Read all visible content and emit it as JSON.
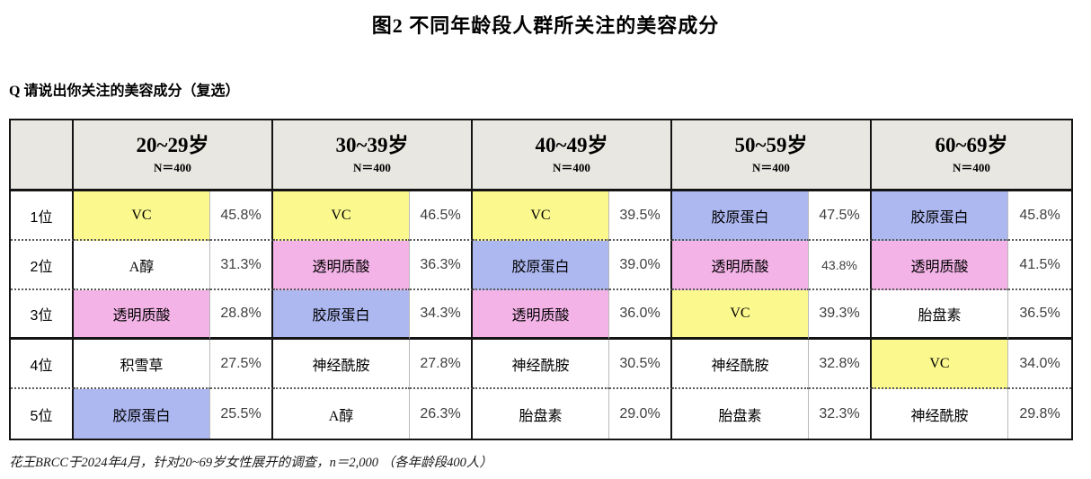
{
  "title": "图2  不同年龄段人群所关注的美容成分",
  "question": "Q 请说出你关注的美容成分（复选）",
  "footnote": "花王BRCC于2024年4月，针对20~69岁女性展开的调查，n＝2,000 （各年龄段400人）",
  "colors": {
    "yellow": "#fbf98e",
    "pink": "#f3b3e7",
    "blue": "#adb7f0",
    "white": "#ffffff"
  },
  "table": {
    "columns": [
      {
        "label": "20~29岁",
        "n": "N＝400"
      },
      {
        "label": "30~39岁",
        "n": "N＝400"
      },
      {
        "label": "40~49岁",
        "n": "N＝400"
      },
      {
        "label": "50~59岁",
        "n": "N＝400"
      },
      {
        "label": "60~69岁",
        "n": "N＝400"
      }
    ],
    "rows": [
      {
        "rank": "1位",
        "cells": [
          {
            "name": "VC",
            "value": "45.8%",
            "bg": "yellow"
          },
          {
            "name": "VC",
            "value": "46.5%",
            "bg": "yellow"
          },
          {
            "name": "VC",
            "value": "39.5%",
            "bg": "yellow"
          },
          {
            "name": "胶原蛋白",
            "value": "47.5%",
            "bg": "blue"
          },
          {
            "name": "胶原蛋白",
            "value": "45.8%",
            "bg": "blue"
          }
        ]
      },
      {
        "rank": "2位",
        "cells": [
          {
            "name": "A醇",
            "value": "31.3%",
            "bg": "white"
          },
          {
            "name": "透明质酸",
            "value": "36.3%",
            "bg": "pink"
          },
          {
            "name": "胶原蛋白",
            "value": "39.0%",
            "bg": "blue"
          },
          {
            "name": "透明质酸",
            "value": "43.8%",
            "bg": "pink"
          },
          {
            "name": "透明质酸",
            "value": "41.5%",
            "bg": "pink"
          }
        ]
      },
      {
        "rank": "3位",
        "cells": [
          {
            "name": "透明质酸",
            "value": "28.8%",
            "bg": "pink"
          },
          {
            "name": "胶原蛋白",
            "value": "34.3%",
            "bg": "blue"
          },
          {
            "name": "透明质酸",
            "value": "36.0%",
            "bg": "pink"
          },
          {
            "name": "VC",
            "value": "39.3%",
            "bg": "yellow"
          },
          {
            "name": "胎盘素",
            "value": "36.5%",
            "bg": "white"
          }
        ]
      },
      {
        "rank": "4位",
        "cells": [
          {
            "name": "积雪草",
            "value": "27.5%",
            "bg": "white"
          },
          {
            "name": "神经酰胺",
            "value": "27.8%",
            "bg": "white"
          },
          {
            "name": "神经酰胺",
            "value": "30.5%",
            "bg": "white"
          },
          {
            "name": "神经酰胺",
            "value": "32.8%",
            "bg": "white"
          },
          {
            "name": "VC",
            "value": "34.0%",
            "bg": "yellow"
          }
        ]
      },
      {
        "rank": "5位",
        "cells": [
          {
            "name": "胶原蛋白",
            "value": "25.5%",
            "bg": "blue"
          },
          {
            "name": "A醇",
            "value": "26.3%",
            "bg": "white"
          },
          {
            "name": "胎盘素",
            "value": "29.0%",
            "bg": "white"
          },
          {
            "name": "胎盘素",
            "value": "32.3%",
            "bg": "white"
          },
          {
            "name": "神经酰胺",
            "value": "29.8%",
            "bg": "white"
          }
        ]
      }
    ]
  },
  "chart_data": {
    "type": "table",
    "title": "图2 不同年龄段人群所关注的美容成分",
    "question": "Q 请说出你关注的美容成分（复选）",
    "columns": [
      "20~29岁",
      "30~39岁",
      "40~49岁",
      "50~59岁",
      "60~69岁"
    ],
    "sample_size_per_column": 400,
    "row_labels": [
      "1位",
      "2位",
      "3位",
      "4位",
      "5位"
    ],
    "entries": [
      [
        {
          "ingredient": "VC",
          "percent": 45.8
        },
        {
          "ingredient": "VC",
          "percent": 46.5
        },
        {
          "ingredient": "VC",
          "percent": 39.5
        },
        {
          "ingredient": "胶原蛋白",
          "percent": 47.5
        },
        {
          "ingredient": "胶原蛋白",
          "percent": 45.8
        }
      ],
      [
        {
          "ingredient": "A醇",
          "percent": 31.3
        },
        {
          "ingredient": "透明质酸",
          "percent": 36.3
        },
        {
          "ingredient": "胶原蛋白",
          "percent": 39.0
        },
        {
          "ingredient": "透明质酸",
          "percent": 43.8
        },
        {
          "ingredient": "透明质酸",
          "percent": 41.5
        }
      ],
      [
        {
          "ingredient": "透明质酸",
          "percent": 28.8
        },
        {
          "ingredient": "胶原蛋白",
          "percent": 34.3
        },
        {
          "ingredient": "透明质酸",
          "percent": 36.0
        },
        {
          "ingredient": "VC",
          "percent": 39.3
        },
        {
          "ingredient": "胎盘素",
          "percent": 36.5
        }
      ],
      [
        {
          "ingredient": "积雪草",
          "percent": 27.5
        },
        {
          "ingredient": "神经酰胺",
          "percent": 27.8
        },
        {
          "ingredient": "神经酰胺",
          "percent": 30.5
        },
        {
          "ingredient": "神经酰胺",
          "percent": 32.8
        },
        {
          "ingredient": "VC",
          "percent": 34.0
        }
      ],
      [
        {
          "ingredient": "胶原蛋白",
          "percent": 25.5
        },
        {
          "ingredient": "A醇",
          "percent": 26.3
        },
        {
          "ingredient": "胎盘素",
          "percent": 29.0
        },
        {
          "ingredient": "胎盘素",
          "percent": 32.3
        },
        {
          "ingredient": "神经酰胺",
          "percent": 29.8
        }
      ]
    ],
    "highlight_colors": {
      "VC": "yellow",
      "胶原蛋白": "blue",
      "透明质酸": "pink"
    },
    "source": "花王BRCC于2024年4月，针对20~69岁女性展开的调查，n＝2,000 （各年龄段400人）"
  }
}
